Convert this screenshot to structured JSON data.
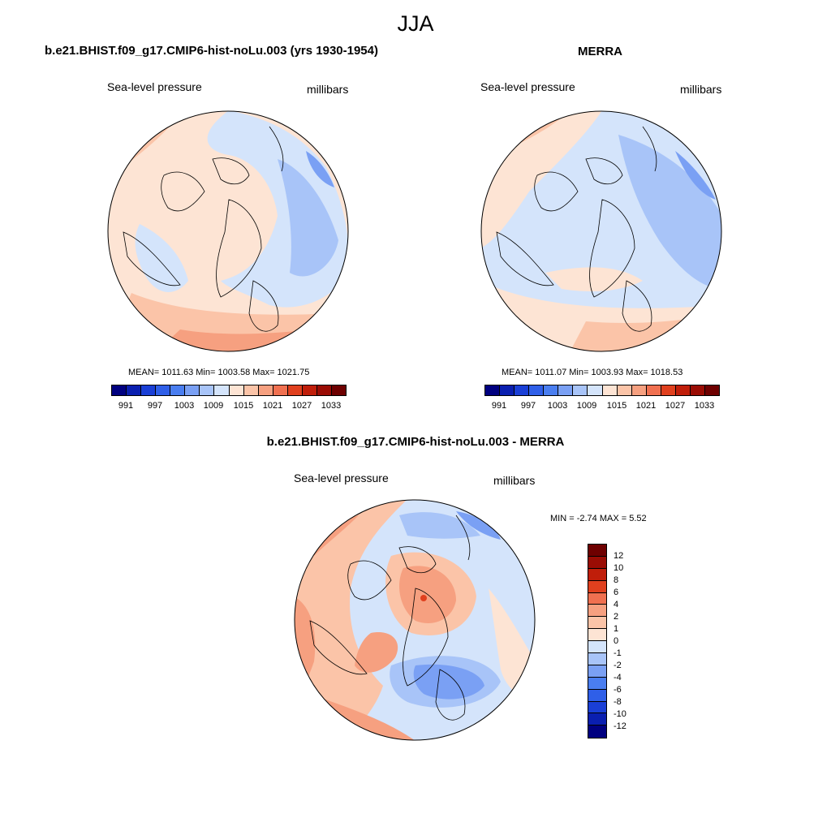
{
  "figure": {
    "title": "JJA",
    "color_scale": [
      "#000080",
      "#0a1fb0",
      "#1a3fd6",
      "#2f5fe8",
      "#4a7ef0",
      "#7aa0f4",
      "#a8c4f8",
      "#d4e4fb",
      "#fde4d4",
      "#fbc4a8",
      "#f6a080",
      "#f07050",
      "#e0401e",
      "#c01e0a",
      "#9a0c04",
      "#6e0000"
    ]
  },
  "panels": {
    "model": {
      "title": "b.e21.BHIST.f09_g17.CMIP6-hist-noLu.003 (yrs 1930-1954)",
      "variable": "Sea-level pressure",
      "units": "millibars",
      "stats": "MEAN= 1011.63  Min= 1003.58  Max= 1021.75",
      "colorbar_ticks": [
        "991",
        "997",
        "1003",
        "1009",
        "1015",
        "1021",
        "1027",
        "1033"
      ]
    },
    "obs": {
      "title": "MERRA",
      "variable": "Sea-level pressure",
      "units": "millibars",
      "stats": "MEAN= 1011.07  Min= 1003.93  Max= 1018.53",
      "colorbar_ticks": [
        "991",
        "997",
        "1003",
        "1009",
        "1015",
        "1021",
        "1027",
        "1033"
      ]
    },
    "diff": {
      "title": "b.e21.BHIST.f09_g17.CMIP6-hist-noLu.003 - MERRA",
      "variable": "Sea-level pressure",
      "units": "millibars",
      "stats": "MIN =  -2.74 MAX =   5.52",
      "colorbar_ticks": [
        "12",
        "10",
        "8",
        "6",
        "4",
        "2",
        "1",
        "0",
        "-1",
        "-2",
        "-4",
        "-6",
        "-8",
        "-10",
        "-12"
      ]
    }
  }
}
